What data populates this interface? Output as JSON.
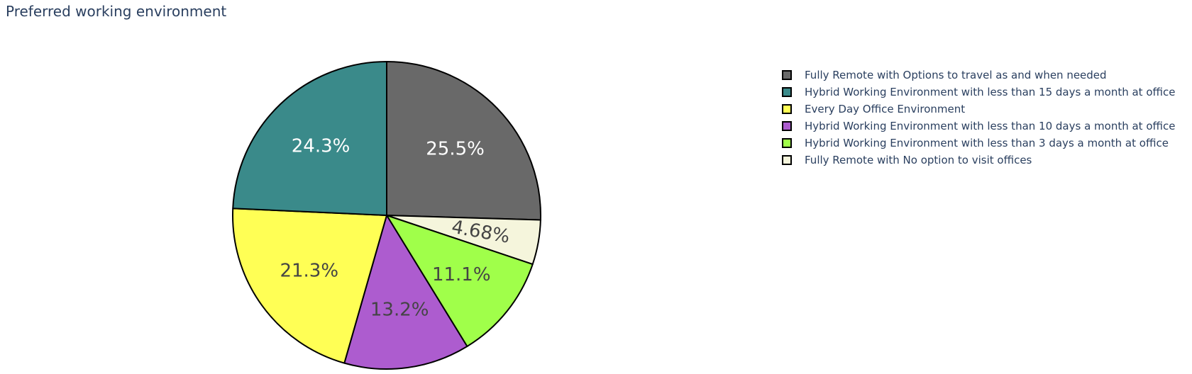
{
  "chart_data": {
    "type": "pie",
    "title": "Preferred working environment",
    "direction": "clockwise",
    "start_angle_deg": 90,
    "text_info": "percent",
    "legend_position": "right",
    "series": [
      {
        "name": "Fully Remote with Options to travel as and when needed",
        "value": 25.5,
        "label": "25.5%",
        "color": "#696969",
        "text_color": "#ffffff"
      },
      {
        "name": "Fully Remote with No option to visit offices",
        "value": 4.68,
        "label": "4.68%",
        "color": "#f5f5dc",
        "text_color": "#444444"
      },
      {
        "name": "Hybrid Working Environment with less than 3 days a month at office",
        "value": 11.1,
        "label": "11.1%",
        "color": "#a0ff4a",
        "text_color": "#444444"
      },
      {
        "name": "Hybrid Working Environment with less than 10 days a month at office",
        "value": 13.2,
        "label": "13.2%",
        "color": "#ad5ccf",
        "text_color": "#444444"
      },
      {
        "name": "Every Day Office Environment",
        "value": 21.3,
        "label": "21.3%",
        "color": "#ffff55",
        "text_color": "#444444"
      },
      {
        "name": "Hybrid Working Environment with less than 15 days a month at office",
        "value": 24.3,
        "label": "24.3%",
        "color": "#3a8a8a",
        "text_color": "#ffffff"
      }
    ],
    "legend_order": [
      "Fully Remote with Options to travel as and when needed",
      "Hybrid Working Environment with less than 15 days a month at office",
      "Every Day Office Environment",
      "Hybrid Working Environment with less than 10 days a month at office",
      "Hybrid Working Environment with less than 3 days a month at office",
      "Fully Remote with No option to visit offices"
    ]
  }
}
